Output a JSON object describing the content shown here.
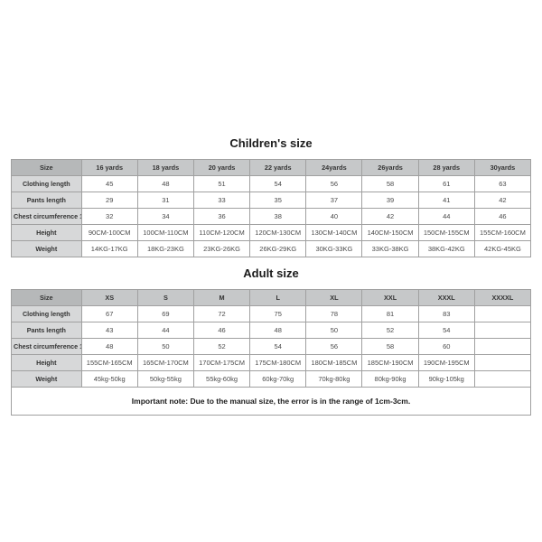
{
  "children": {
    "title": "Children's size",
    "columns": [
      "Size",
      "16 yards",
      "18 yards",
      "20 yards",
      "22 yards",
      "24yards",
      "26yards",
      "28 yards",
      "30yards"
    ],
    "rows": [
      {
        "label": "Clothing length",
        "cells": [
          "45",
          "48",
          "51",
          "54",
          "56",
          "58",
          "61",
          "63"
        ]
      },
      {
        "label": "Pants length",
        "cells": [
          "29",
          "31",
          "33",
          "35",
          "37",
          "39",
          "41",
          "42"
        ]
      },
      {
        "label": "Chest circumference 1/2",
        "cells": [
          "32",
          "34",
          "36",
          "38",
          "40",
          "42",
          "44",
          "46"
        ]
      },
      {
        "label": "Height",
        "cells": [
          "90CM-100CM",
          "100CM-110CM",
          "110CM-120CM",
          "120CM-130CM",
          "130CM-140CM",
          "140CM-150CM",
          "150CM-155CM",
          "155CM-160CM"
        ]
      },
      {
        "label": "Weight",
        "cells": [
          "14KG-17KG",
          "18KG-23KG",
          "23KG-26KG",
          "26KG-29KG",
          "30KG-33KG",
          "33KG-38KG",
          "38KG-42KG",
          "42KG-45KG"
        ]
      }
    ]
  },
  "adult": {
    "title": "Adult size",
    "columns": [
      "Size",
      "XS",
      "S",
      "M",
      "L",
      "XL",
      "XXL",
      "XXXL",
      "XXXXL"
    ],
    "rows": [
      {
        "label": "Clothing length",
        "cells": [
          "67",
          "69",
          "72",
          "75",
          "78",
          "81",
          "83",
          ""
        ]
      },
      {
        "label": "Pants length",
        "cells": [
          "43",
          "44",
          "46",
          "48",
          "50",
          "52",
          "54",
          ""
        ]
      },
      {
        "label": "Chest circumference 1/2",
        "cells": [
          "48",
          "50",
          "52",
          "54",
          "56",
          "58",
          "60",
          ""
        ]
      },
      {
        "label": "Height",
        "cells": [
          "155CM-165CM",
          "165CM-170CM",
          "170CM-175CM",
          "175CM-180CM",
          "180CM-185CM",
          "185CM-190CM",
          "190CM-195CM",
          ""
        ]
      },
      {
        "label": "Weight",
        "cells": [
          "45kg-50kg",
          "50kg-55kg",
          "55kg-60kg",
          "60kg-70kg",
          "70kg-80kg",
          "80kg-90kg",
          "90kg-105kg",
          ""
        ]
      }
    ]
  },
  "note": "Important note: Due to the manual size, the error is in the range of 1cm-3cm."
}
